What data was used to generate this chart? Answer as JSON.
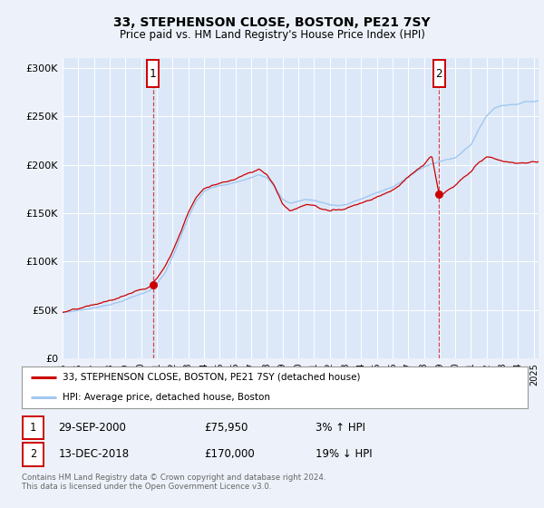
{
  "title": "33, STEPHENSON CLOSE, BOSTON, PE21 7SY",
  "subtitle": "Price paid vs. HM Land Registry's House Price Index (HPI)",
  "ylim": [
    0,
    310000
  ],
  "yticks": [
    0,
    50000,
    100000,
    150000,
    200000,
    250000,
    300000
  ],
  "ytick_labels": [
    "£0",
    "£50K",
    "£100K",
    "£150K",
    "£200K",
    "£250K",
    "£300K"
  ],
  "hpi_color": "#a0c8f0",
  "price_color": "#cc0000",
  "bg_color": "#edf2fa",
  "plot_bg": "#dce8f8",
  "grid_color": "#ffffff",
  "xmin": 1995.0,
  "xmax": 2025.3,
  "marker1_x": 2000.75,
  "marker1_y": 75950,
  "marker2_x": 2018.97,
  "marker2_y": 170000,
  "legend_label1": "33, STEPHENSON CLOSE, BOSTON, PE21 7SY (detached house)",
  "legend_label2": "HPI: Average price, detached house, Boston",
  "annot1_box": "1",
  "annot1_date": "29-SEP-2000",
  "annot1_price": "£75,950",
  "annot1_hpi": "3% ↑ HPI",
  "annot2_box": "2",
  "annot2_date": "13-DEC-2018",
  "annot2_price": "£170,000",
  "annot2_hpi": "19% ↓ HPI",
  "footer": "Contains HM Land Registry data © Crown copyright and database right 2024.\nThis data is licensed under the Open Government Licence v3.0."
}
